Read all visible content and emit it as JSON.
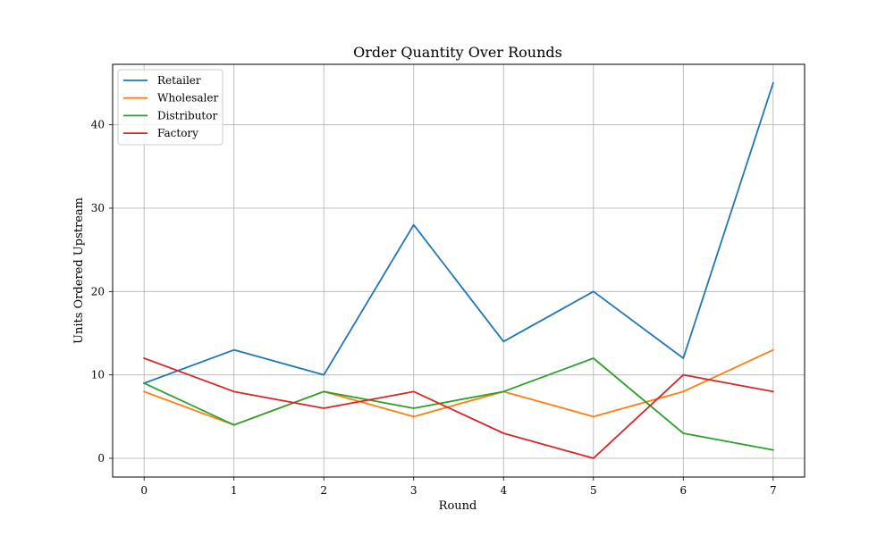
{
  "chart_data": {
    "type": "line",
    "title": "Order Quantity Over Rounds",
    "xlabel": "Round",
    "ylabel": "Units Ordered Upstream",
    "x": [
      0,
      1,
      2,
      3,
      4,
      5,
      6,
      7
    ],
    "xlim": [
      -0.35,
      7.35
    ],
    "ylim": [
      -2.25,
      47.25
    ],
    "xticks": [
      0,
      1,
      2,
      3,
      4,
      5,
      6,
      7
    ],
    "yticks": [
      0,
      10,
      20,
      30,
      40
    ],
    "grid": true,
    "legend_position": "top-left",
    "series": [
      {
        "name": "Retailer",
        "color": "#1f77b4",
        "values": [
          9,
          13,
          10,
          28,
          14,
          20,
          12,
          45
        ]
      },
      {
        "name": "Wholesaler",
        "color": "#ff7f0e",
        "values": [
          8,
          4,
          8,
          5,
          8,
          5,
          8,
          13
        ]
      },
      {
        "name": "Distributor",
        "color": "#2ca02c",
        "values": [
          9,
          4,
          8,
          6,
          8,
          12,
          3,
          1
        ]
      },
      {
        "name": "Factory",
        "color": "#d62728",
        "values": [
          12,
          8,
          6,
          8,
          3,
          0,
          10,
          8
        ]
      }
    ]
  }
}
